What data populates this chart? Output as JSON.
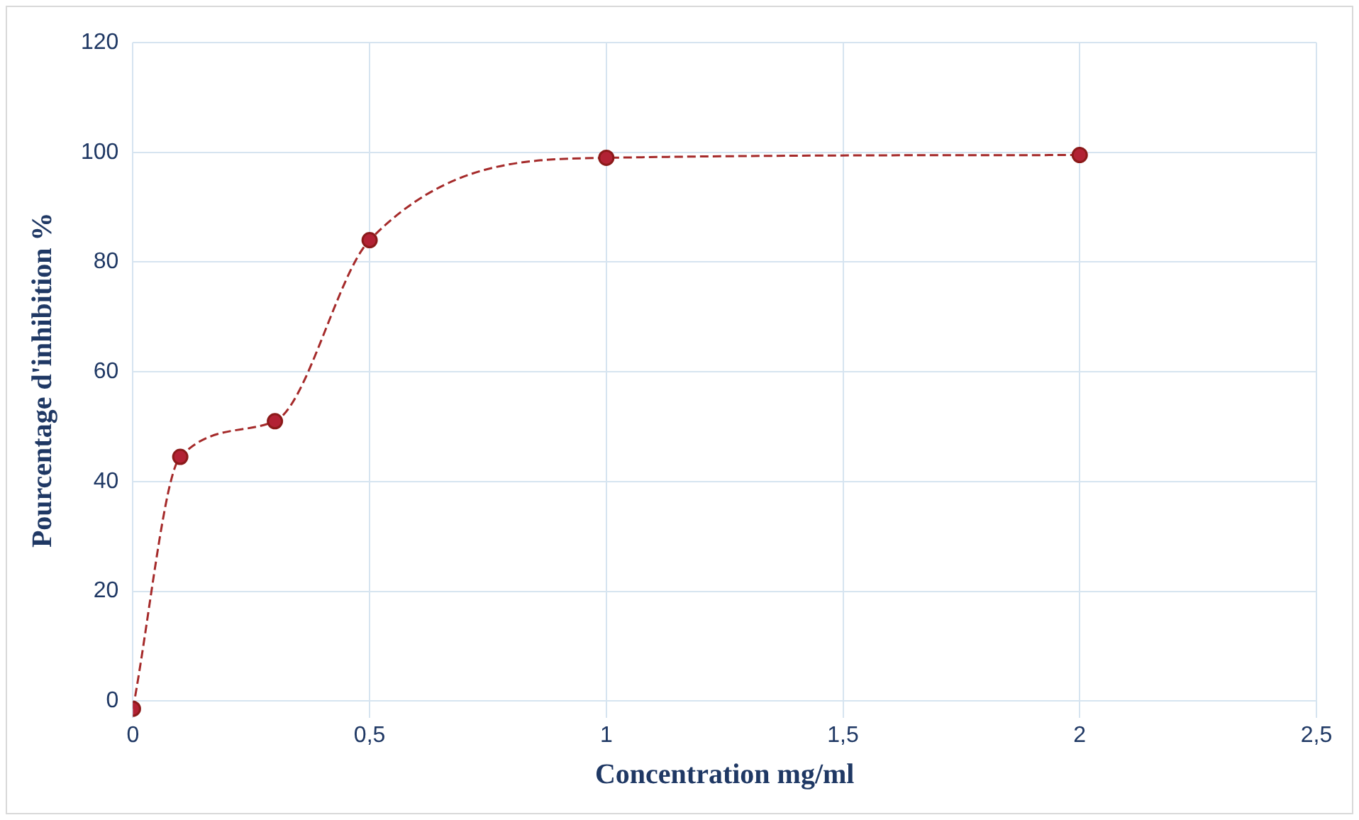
{
  "chart_data": {
    "type": "line",
    "xlabel": "Concentration mg/ml",
    "ylabel": "Pourcentage d'inhibition %",
    "x": [
      0,
      0.1,
      0.3,
      0.5,
      1,
      2
    ],
    "series": [
      {
        "color": "#a52a2a",
        "values": [
          -1.4,
          44.5,
          51,
          84,
          99,
          99.5
        ]
      }
    ],
    "xlim": [
      0,
      2.5
    ],
    "xticks": [
      0,
      {
        "value": 0.5,
        "label": "0,5"
      },
      1,
      {
        "value": 1.5,
        "label": "1,5"
      },
      2,
      {
        "value": 2.5,
        "label": "2,5"
      }
    ],
    "ylim": [
      -3,
      120
    ],
    "yticks": [
      0,
      20,
      40,
      60,
      80,
      100,
      120
    ],
    "grid": true,
    "legend": false,
    "marker": "circle",
    "line_style": "dashed"
  }
}
